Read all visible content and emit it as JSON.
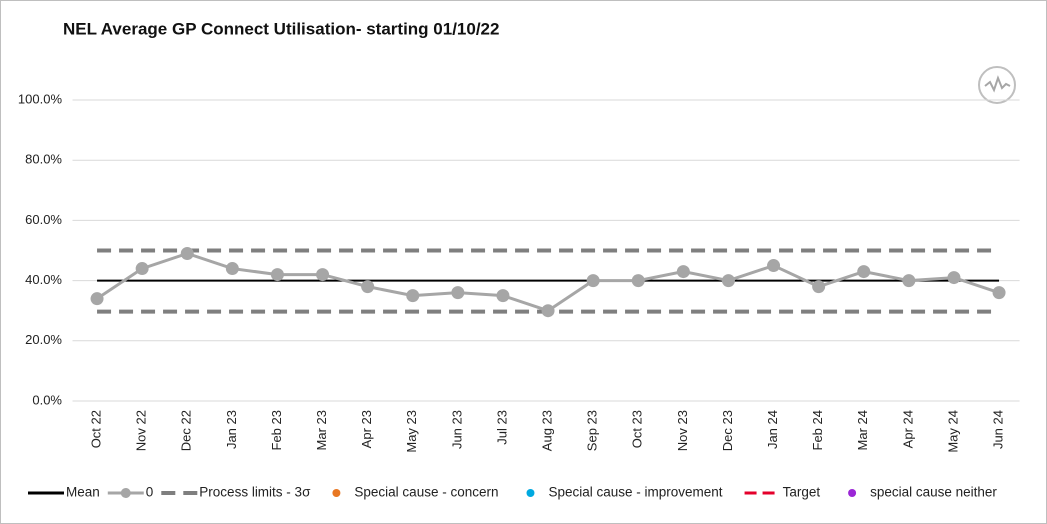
{
  "chart_data": {
    "type": "line",
    "title": "NEL Average GP Connect Utilisation- starting 01/10/22",
    "categories": [
      "Oct 22",
      "Nov 22",
      "Dec 22",
      "Jan 23",
      "Feb 23",
      "Mar 23",
      "Apr 23",
      "May 23",
      "Jun 23",
      "Jul 23",
      "Aug 23",
      "Sep 23",
      "Oct 23",
      "Nov 23",
      "Dec 23",
      "Jan 24",
      "Feb 24",
      "Mar 24",
      "Apr 24",
      "May 24",
      "Jun 24"
    ],
    "series": [
      {
        "name": "Mean",
        "color": "#000000",
        "values": [
          40,
          40,
          40,
          40,
          40,
          40,
          40,
          40,
          40,
          40,
          40,
          40,
          40,
          40,
          40,
          40,
          40,
          40,
          40,
          40,
          40
        ]
      },
      {
        "name": "0",
        "color": "#a6a6a6",
        "marker": true,
        "values": [
          34,
          44,
          49,
          44,
          42,
          42,
          38,
          35,
          36,
          35,
          30,
          40,
          40,
          43,
          40,
          45,
          38,
          43,
          40,
          41,
          36
        ]
      }
    ],
    "process_limits": {
      "name": "Process limits - 3σ",
      "color": "#7f7f7f",
      "upper": [
        50,
        50,
        50,
        50,
        50,
        50,
        50,
        50,
        50,
        50,
        50,
        50,
        50,
        50,
        50,
        50,
        50,
        50,
        50,
        50,
        50
      ],
      "lower": [
        29.7,
        29.7,
        29.7,
        29.7,
        29.7,
        29.7,
        29.7,
        29.7,
        29.7,
        29.7,
        29.7,
        29.7,
        29.7,
        29.7,
        29.7,
        29.7,
        29.7,
        29.7,
        29.7,
        29.7,
        29.7
      ]
    },
    "legend_extra": [
      {
        "name": "Special cause - concern",
        "color": "#e87722",
        "style": "dot"
      },
      {
        "name": "Special cause  - improvement",
        "color": "#00a9e0",
        "style": "dot"
      },
      {
        "name": "Target",
        "color": "#e4002b",
        "style": "line"
      },
      {
        "name": "special cause neither",
        "color": "#9b26d6",
        "style": "dot"
      }
    ],
    "ylim": [
      0,
      100
    ],
    "yticks": [
      {
        "value": 0,
        "label": "0.0%"
      },
      {
        "value": 20,
        "label": "20.0%"
      },
      {
        "value": 40,
        "label": "40.0%"
      },
      {
        "value": 60,
        "label": "60.0%"
      },
      {
        "value": 80,
        "label": "80.0%"
      },
      {
        "value": 100,
        "label": "100.0%"
      }
    ],
    "grid": true
  }
}
